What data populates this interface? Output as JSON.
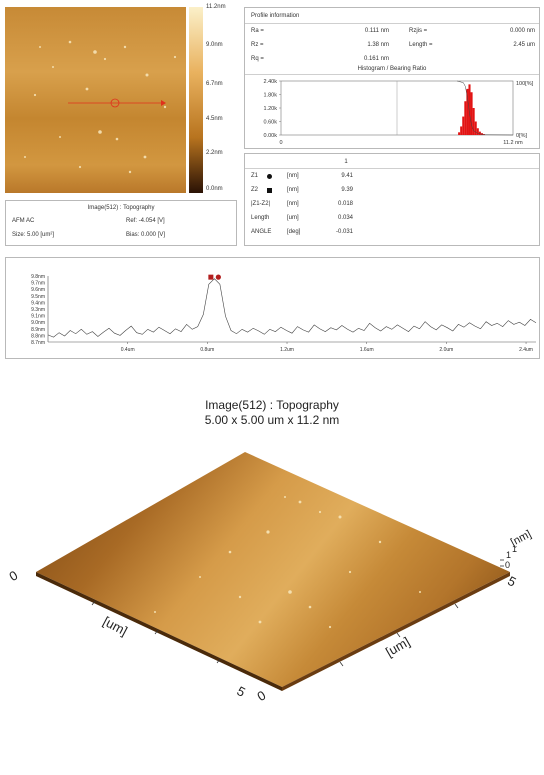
{
  "afm_image": {
    "colorbar_ticks": [
      "11.2nm",
      "9.0nm",
      "6.7nm",
      "4.5nm",
      "2.2nm",
      "0.0nm"
    ],
    "colors": {
      "top": "#e9b25f",
      "mid": "#c7882f",
      "bottom": "#7a4712",
      "line": "#e0301c"
    }
  },
  "image_info": {
    "title": "Image(512) : Topography",
    "mode": "AFM AC",
    "size": "Size: 5.00 [um²]",
    "ref": "Ref: -4.054 [V]",
    "bias": "Bias: 0.000 [V]"
  },
  "profile": {
    "header": "Profile information",
    "ra_label": "Ra =",
    "ra_value": "0.111 nm",
    "rz_label": "Rz =",
    "rz_value": "1.38 nm",
    "rq_label": "Rq =",
    "rq_value": "0.161 nm",
    "rzjis_label": "Rzjis =",
    "rzjis_value": "0.000 nm",
    "length_label": "Length =",
    "length_value": "2.45 um",
    "histogram_title": "Histogram / Bearing Ratio"
  },
  "histogram_chart": {
    "type": "bar",
    "y_ticks": [
      "2.40k",
      "1.80k",
      "1.20k",
      "0.60k",
      "0.00k"
    ],
    "x_left": "0",
    "x_right": "11.2 nm",
    "right_top": "100[%]",
    "right_bottom": "0[%]",
    "ylim": [
      0,
      2400
    ],
    "xlim": [
      0,
      11.2
    ],
    "bins_x": [
      8.6,
      8.7,
      8.8,
      8.9,
      9.0,
      9.1,
      9.2,
      9.3,
      9.4,
      9.5,
      9.6,
      9.7,
      9.8
    ],
    "values": [
      120,
      380,
      820,
      1500,
      2050,
      2250,
      1900,
      1200,
      600,
      300,
      150,
      80,
      40
    ],
    "bar_color": "#e21313"
  },
  "cursor_table": {
    "col_header": "1",
    "rows": [
      {
        "label": "Z1",
        "unit": "[nm]",
        "value": "9.41"
      },
      {
        "label": "Z2",
        "unit": "[nm]",
        "value": "9.39"
      },
      {
        "label": "|Z1-Z2|",
        "unit": "[nm]",
        "value": "0.018"
      },
      {
        "label": "Length",
        "unit": "[um]",
        "value": "0.034"
      },
      {
        "label": "ANGLE",
        "unit": "[deg]",
        "value": "-0.031"
      }
    ],
    "z1_color": "#111111",
    "z2_color": "#111111"
  },
  "profile_chart": {
    "type": "line",
    "y_ticks": [
      "9.8nm",
      "9.7nm",
      "9.6nm",
      "9.5nm",
      "9.4nm",
      "9.3nm",
      "9.1nm",
      "9.0nm",
      "8.9nm",
      "8.8nm",
      "8.7nm"
    ],
    "x_ticks": [
      "0.4um",
      "0.8um",
      "1.2um",
      "1.6um",
      "2.0um",
      "2.4um"
    ],
    "ylim": [
      8.65,
      9.85
    ],
    "xlim": [
      0,
      2.45
    ],
    "y": [
      8.78,
      8.74,
      8.82,
      8.76,
      8.86,
      8.8,
      8.88,
      8.79,
      8.84,
      8.75,
      8.83,
      8.9,
      8.81,
      8.77,
      8.86,
      8.94,
      8.82,
      8.79,
      8.88,
      8.83,
      8.92,
      8.86,
      8.8,
      8.89,
      8.84,
      8.97,
      8.88,
      8.93,
      9.15,
      9.7,
      9.8,
      9.7,
      9.12,
      8.86,
      8.8,
      8.88,
      8.83,
      8.9,
      8.85,
      8.79,
      8.88,
      8.84,
      8.92,
      8.86,
      8.81,
      8.93,
      8.87,
      8.83,
      8.96,
      8.89,
      8.84,
      8.91,
      8.87,
      8.95,
      8.88,
      8.83,
      8.9,
      8.86,
      8.99,
      8.91,
      8.85,
      8.93,
      8.88,
      8.96,
      8.9,
      8.84,
      8.94,
      8.89,
      9.02,
      8.93,
      8.87,
      8.96,
      8.91,
      8.85,
      8.97,
      8.92,
      9.0,
      8.94,
      8.89,
      9.02,
      8.95,
      8.99,
      8.93,
      9.04,
      8.97,
      9.01,
      8.95,
      9.06,
      9.0
    ],
    "cursors_y": [
      9.82,
      9.82
    ],
    "cursor_colors": [
      "#b21e1e",
      "#b21e1e"
    ]
  },
  "view3d": {
    "title": "Image(512) : Topography",
    "subtitle": "5.00 x 5.00 um x 11.2 nm",
    "axis_unit_left": "[um]",
    "axis_unit_right": "[um]",
    "axis_unit_z": "[nm]",
    "origin_left": "0",
    "origin_bottom_a": "5",
    "origin_bottom_b": "0",
    "end_right": "5",
    "z_tick_top": "1",
    "z_tick_mid": "1",
    "z_tick_zero": "0",
    "colors": {
      "light": "#d9a04d",
      "mid": "#b8792c",
      "dark": "#7e4a17",
      "edge": "#4a2a0a"
    }
  }
}
